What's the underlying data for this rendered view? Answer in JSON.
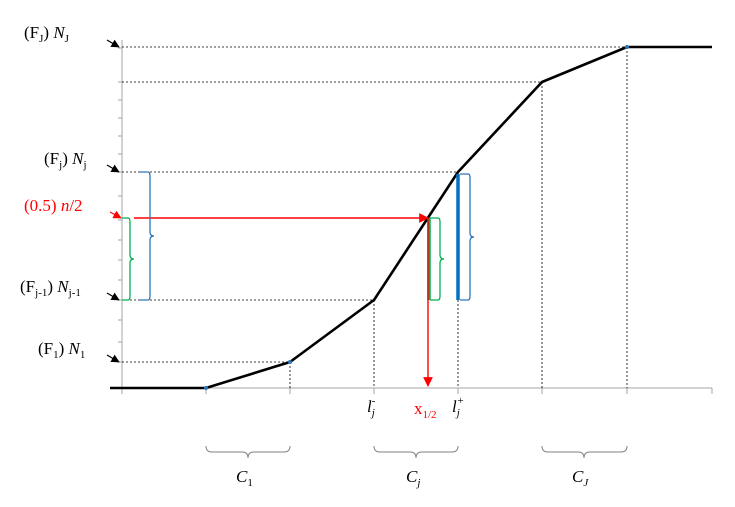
{
  "y_labels": {
    "FJ": {
      "paren": "(F",
      "paren_sub": "J",
      "paren_close": ")",
      "N": "N",
      "N_sub": "J"
    },
    "Fj": {
      "paren": "(F",
      "paren_sub": "j",
      "paren_close": ")",
      "N": "N",
      "N_sub": "j"
    },
    "half": {
      "paren": "(0.5)",
      "n": "n",
      "rest": "/2"
    },
    "Fj1": {
      "paren": "(F",
      "paren_sub": "j",
      "paren_sub2": "-1",
      "paren_close": ")",
      "N": "N",
      "N_sub": "j",
      "N_sub2": "-1"
    },
    "F1": {
      "paren": "(F",
      "paren_sub": "1",
      "paren_close": ")",
      "N": "N",
      "N_sub": "1"
    }
  },
  "x_labels": {
    "l_minus": {
      "base": "l",
      "sub": "j",
      "sup": "-"
    },
    "median": {
      "base": "x",
      "sub": "1/2"
    },
    "l_plus": {
      "base": "l",
      "sub": "j",
      "sup": "+"
    }
  },
  "class_labels": {
    "C1": {
      "base": "C",
      "sub": "1"
    },
    "Cj": {
      "base": "C",
      "sub": "j"
    },
    "CJ": {
      "base": "C",
      "sub": "J"
    }
  },
  "colors": {
    "curve": "#000000",
    "axis": "#a6a6a6",
    "guide": "#000000",
    "red": "#ff0000",
    "green": "#00b050",
    "blue": "#0070c0",
    "brace_blue": "#2e75b6"
  }
}
